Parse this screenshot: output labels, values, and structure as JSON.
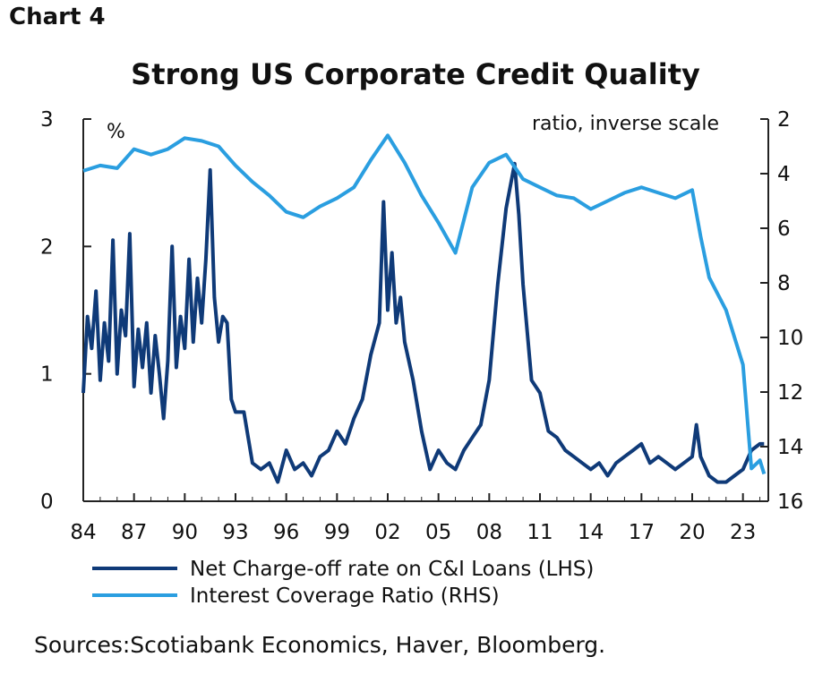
{
  "header": {
    "chart_number": "Chart 4",
    "title": "Strong US Corporate Credit Quality"
  },
  "footer": {
    "source": "Sources:Scotiabank Economics, Haver, Bloomberg."
  },
  "colors": {
    "dark_series": "#0f3a78",
    "light_series": "#2a9ee0",
    "axis": "#222222"
  },
  "chart_data": {
    "type": "line",
    "title": "Strong US Corporate Credit Quality",
    "left_axis": {
      "unit": "%",
      "ticks": [
        "0",
        "1",
        "2",
        "3"
      ],
      "range": [
        0,
        3
      ]
    },
    "right_axis": {
      "unit": "ratio, inverse scale",
      "ticks": [
        "2",
        "4",
        "6",
        "8",
        "10",
        "12",
        "14",
        "16"
      ],
      "range": [
        2,
        16
      ],
      "inverted": true
    },
    "x_ticks": [
      "84",
      "87",
      "90",
      "93",
      "96",
      "99",
      "02",
      "05",
      "08",
      "11",
      "14",
      "17",
      "20",
      "23"
    ],
    "x_range": [
      1984,
      2024.5
    ],
    "grid": false,
    "legend_position": "bottom",
    "series": [
      {
        "name": "Net Charge-off rate on C&I Loans (LHS)",
        "axis": "left",
        "x": [
          1984,
          1984.25,
          1984.5,
          1984.75,
          1985,
          1985.25,
          1985.5,
          1985.75,
          1986,
          1986.25,
          1986.5,
          1986.75,
          1987,
          1987.25,
          1987.5,
          1987.75,
          1988,
          1988.25,
          1988.5,
          1988.75,
          1989,
          1989.25,
          1989.5,
          1989.75,
          1990,
          1990.25,
          1990.5,
          1990.75,
          1991,
          1991.25,
          1991.5,
          1991.75,
          1992,
          1992.25,
          1992.5,
          1992.75,
          1993,
          1993.5,
          1994,
          1994.5,
          1995,
          1995.5,
          1996,
          1996.5,
          1997,
          1997.5,
          1998,
          1998.5,
          1999,
          1999.5,
          2000,
          2000.5,
          2001,
          2001.5,
          2001.75,
          2002,
          2002.25,
          2002.5,
          2002.75,
          2003,
          2003.5,
          2004,
          2004.5,
          2005,
          2005.5,
          2006,
          2006.5,
          2007,
          2007.5,
          2008,
          2008.5,
          2009,
          2009.5,
          2009.75,
          2010,
          2010.5,
          2011,
          2011.5,
          2012,
          2012.5,
          2013,
          2013.5,
          2014,
          2014.5,
          2015,
          2015.5,
          2016,
          2016.5,
          2017,
          2017.5,
          2018,
          2018.5,
          2019,
          2019.5,
          2020,
          2020.25,
          2020.5,
          2021,
          2021.5,
          2022,
          2022.5,
          2023,
          2023.5,
          2024,
          2024.25
        ],
        "values": [
          0.85,
          1.45,
          1.2,
          1.65,
          0.95,
          1.4,
          1.1,
          2.05,
          1.0,
          1.5,
          1.3,
          2.1,
          0.9,
          1.35,
          1.05,
          1.4,
          0.85,
          1.3,
          1.0,
          0.65,
          1.1,
          2.0,
          1.05,
          1.45,
          1.2,
          1.9,
          1.25,
          1.75,
          1.4,
          1.9,
          2.6,
          1.6,
          1.25,
          1.45,
          1.4,
          0.8,
          0.7,
          0.7,
          0.3,
          0.25,
          0.3,
          0.15,
          0.4,
          0.25,
          0.3,
          0.2,
          0.35,
          0.4,
          0.55,
          0.45,
          0.65,
          0.8,
          1.15,
          1.4,
          2.35,
          1.5,
          1.95,
          1.4,
          1.6,
          1.25,
          0.95,
          0.55,
          0.25,
          0.4,
          0.3,
          0.25,
          0.4,
          0.5,
          0.6,
          0.95,
          1.7,
          2.3,
          2.65,
          2.25,
          1.7,
          0.95,
          0.85,
          0.55,
          0.5,
          0.4,
          0.35,
          0.3,
          0.25,
          0.3,
          0.2,
          0.3,
          0.35,
          0.4,
          0.45,
          0.3,
          0.35,
          0.3,
          0.25,
          0.3,
          0.35,
          0.6,
          0.35,
          0.2,
          0.15,
          0.15,
          0.2,
          0.25,
          0.4,
          0.45,
          0.45
        ]
      },
      {
        "name": "Interest Coverage Ratio (RHS)",
        "axis": "right",
        "x": [
          1984,
          1985,
          1986,
          1987,
          1988,
          1989,
          1990,
          1991,
          1992,
          1993,
          1994,
          1995,
          1996,
          1997,
          1998,
          1999,
          2000,
          2001,
          2002,
          2003,
          2004,
          2005,
          2006,
          2007,
          2008,
          2009,
          2010,
          2011,
          2012,
          2013,
          2014,
          2015,
          2016,
          2017,
          2018,
          2019,
          2020,
          2020.5,
          2021,
          2022,
          2023,
          2023.5,
          2024,
          2024.25
        ],
        "values": [
          3.9,
          3.7,
          3.8,
          3.1,
          3.3,
          3.1,
          2.7,
          2.8,
          3.0,
          3.7,
          4.3,
          4.8,
          5.4,
          5.6,
          5.2,
          4.9,
          4.5,
          3.5,
          2.6,
          3.6,
          4.8,
          5.8,
          6.9,
          4.5,
          3.6,
          3.3,
          4.2,
          4.5,
          4.8,
          4.9,
          5.3,
          5.0,
          4.7,
          4.5,
          4.7,
          4.9,
          4.6,
          6.3,
          7.8,
          9.0,
          11.0,
          14.8,
          14.5,
          15.0
        ]
      }
    ]
  }
}
